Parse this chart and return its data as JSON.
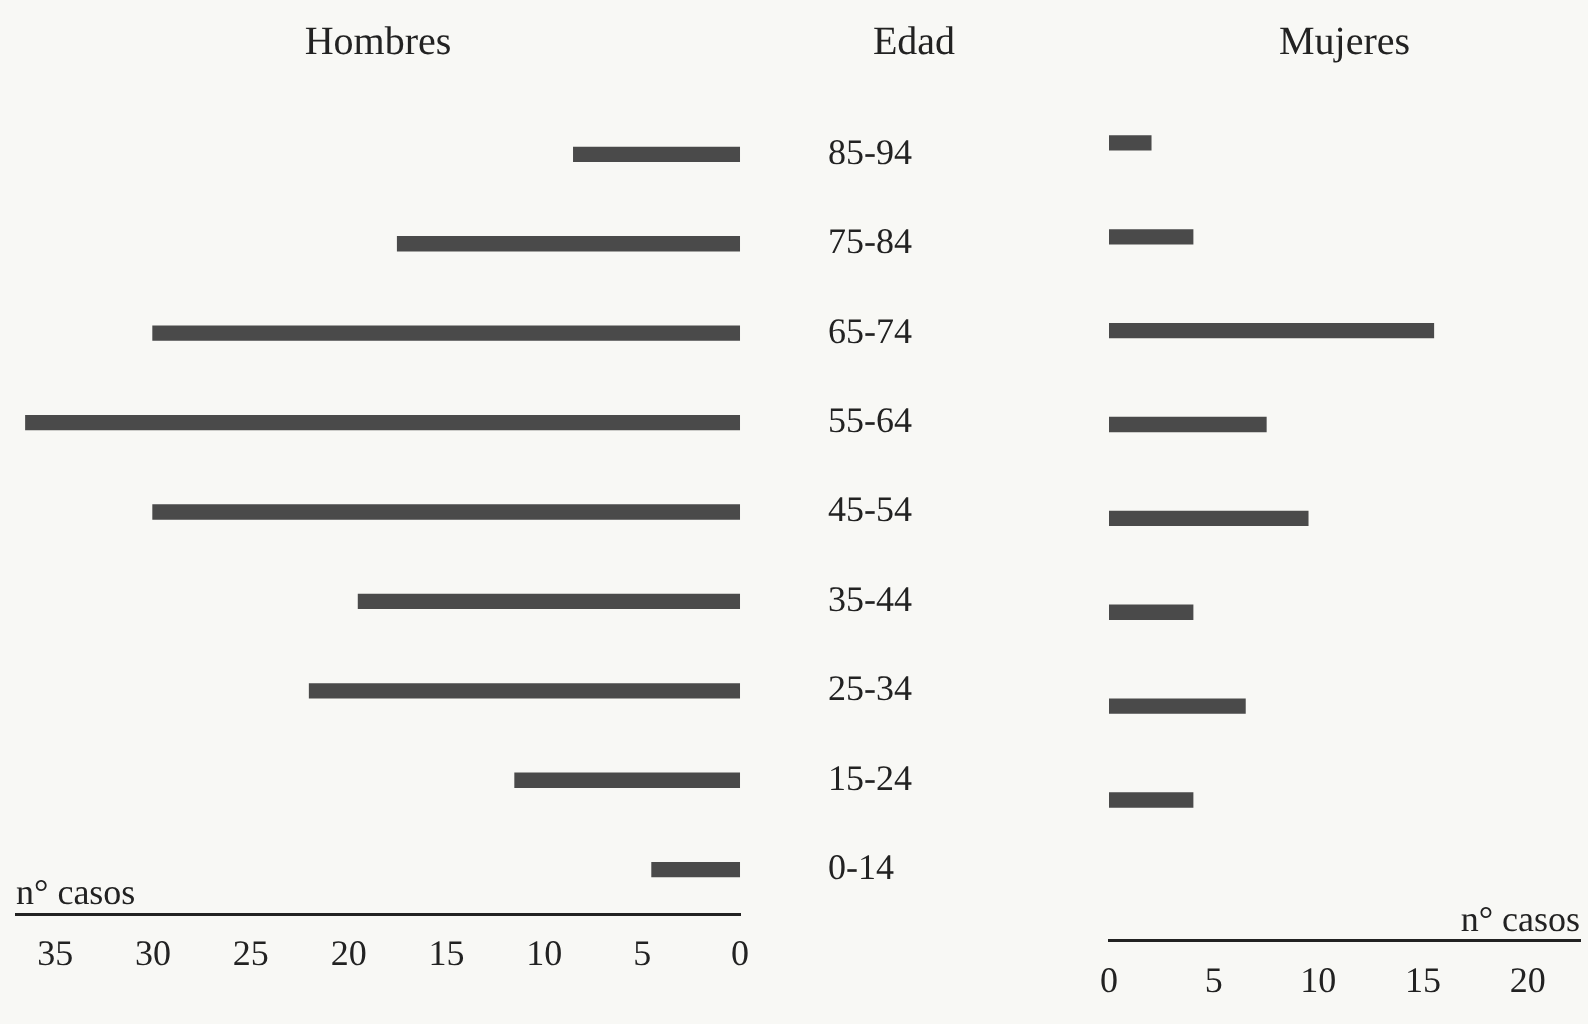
{
  "chart_data": [
    {
      "type": "bar",
      "orientation": "horizontal",
      "title": "Hombres",
      "ylabel": "Edad",
      "xlabel": "n° casos",
      "categories": [
        "85-94",
        "75-84",
        "65-74",
        "55-64",
        "45-54",
        "35-44",
        "25-34",
        "15-24",
        "0-14"
      ],
      "values": [
        8.5,
        17.5,
        30,
        36.5,
        30,
        19.5,
        22,
        11.5,
        4.5
      ],
      "color": "#4a4a4a",
      "xlim": [
        37,
        0
      ],
      "xticks": [
        35,
        30,
        25,
        20,
        15,
        10,
        5,
        0
      ],
      "grid": false
    },
    {
      "type": "bar",
      "orientation": "horizontal",
      "title": "Mujeres",
      "xlabel": "n° casos",
      "categories": [
        null,
        null,
        null,
        null,
        null,
        null,
        null,
        null,
        null
      ],
      "values": [
        2,
        4,
        15.5,
        7.5,
        9.5,
        4,
        6.5,
        4,
        null
      ],
      "color": "#4a4a4a",
      "xlim": [
        0,
        22.5
      ],
      "xticks": [
        0,
        5,
        10,
        15,
        20
      ],
      "grid": false
    }
  ]
}
